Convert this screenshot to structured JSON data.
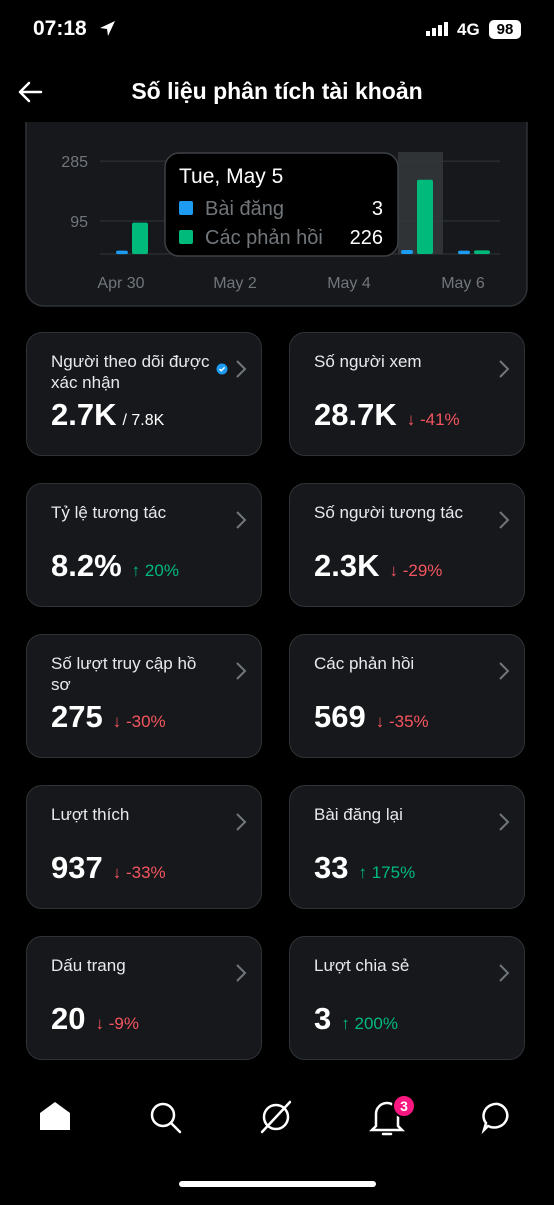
{
  "status_bar": {
    "time": "07:18",
    "network": "4G",
    "battery": "98"
  },
  "header": {
    "title": "Số liệu phân tích tài khoản"
  },
  "chart": {
    "type": "bar",
    "categories": [
      "Apr 30",
      null,
      "May 2",
      null,
      "May 4",
      null,
      "May 6"
    ],
    "series": [
      {
        "name": "Bài đăng",
        "color": "#1d9bf0",
        "values": [
          1,
          null,
          null,
          null,
          null,
          3,
          1
        ]
      },
      {
        "name": "Các phản hồi",
        "color": "#00ba7c",
        "values": [
          90,
          null,
          null,
          null,
          null,
          226,
          2
        ]
      }
    ],
    "ylim": [
      0,
      390
    ],
    "yticks": [
      95,
      285
    ],
    "grid": true,
    "tooltip": {
      "title": "Tue, May 5",
      "index": 5
    }
  },
  "cards": [
    {
      "label": "Người theo dõi được xác nhận",
      "value": "2.7K",
      "sub": "/ 7.8K",
      "verified": true
    },
    {
      "label": "Số người xem",
      "value": "28.7K",
      "change": "-41%",
      "trend": "down"
    },
    {
      "label": "Tỷ lệ tương tác",
      "value": "8.2%",
      "change": "20%",
      "trend": "up"
    },
    {
      "label": "Số người tương tác",
      "value": "2.3K",
      "change": "-29%",
      "trend": "down"
    },
    {
      "label": "Số lượt truy cập hồ sơ",
      "value": "275",
      "change": "-30%",
      "trend": "down"
    },
    {
      "label": "Các phản hồi",
      "value": "569",
      "change": "-35%",
      "trend": "down"
    },
    {
      "label": "Lượt thích",
      "value": "937",
      "change": "-33%",
      "trend": "down"
    },
    {
      "label": "Bài đăng lại",
      "value": "33",
      "change": "175%",
      "trend": "up"
    },
    {
      "label": "Dấu trang",
      "value": "20",
      "change": "-9%",
      "trend": "down"
    },
    {
      "label": "Lượt chia sẻ",
      "value": "3",
      "change": "200%",
      "trend": "up"
    }
  ],
  "nav": {
    "notification_badge": "3"
  }
}
